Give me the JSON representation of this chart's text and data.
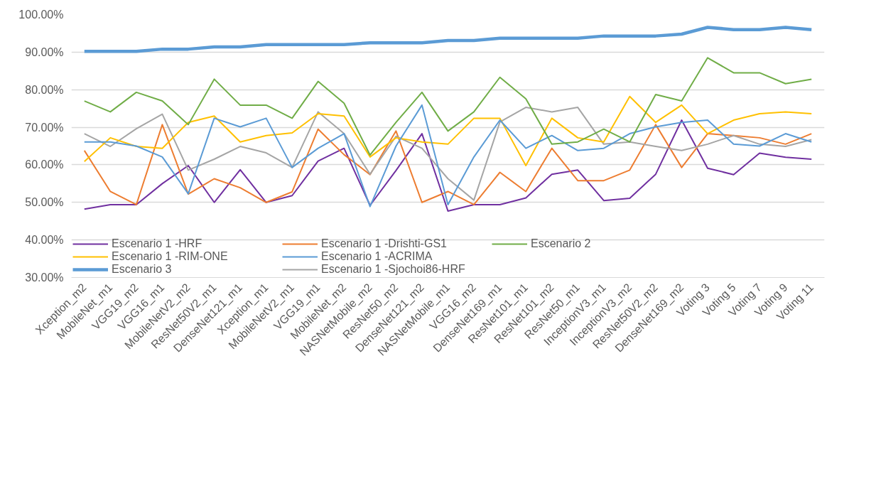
{
  "chart_data": {
    "type": "line",
    "categories": [
      "Xception_m2",
      "MobileNet_m1",
      "VGG19_m2",
      "VGG16_m1",
      "MobileNetV2_m2",
      "ResNet50V2_m1",
      "DenseNet121_m1",
      "Xception_m1",
      "MobileNetV2_m1",
      "VGG19_m1",
      "MobileNet_m2",
      "NASNetMobile_m2",
      "ResNet50_m2",
      "DenseNet121_m2",
      "NASNetMobile_m1",
      "VGG16_m2",
      "DenseNet169_m1",
      "ResNet101_m1",
      "ResNet101_m2",
      "ResNet50_m1",
      "InceptionV3_m1",
      "InceptionV3_m2",
      "ResNet50V2_m2",
      "DenseNet169_m2",
      "Voting 3",
      "Voting 5",
      "Voting 7",
      "Voting 9",
      "Voting 11"
    ],
    "series": [
      {
        "name": "Escenario 1 -HRF",
        "color": "#7030a0",
        "values": [
          48.2,
          49.4,
          49.4,
          55,
          59.8,
          50,
          58.7,
          50,
          51.8,
          61,
          64.4,
          49.2,
          58.5,
          68.3,
          47.7,
          49.4,
          49.4,
          51.2,
          57.5,
          58.6,
          50.5,
          51.1,
          57.5,
          71.9,
          59.1,
          57.4,
          63.1,
          62,
          61.5
        ]
      },
      {
        "name": "Escenario 1 -Drishti-GS1",
        "color": "#ed7d31",
        "values": [
          63.8,
          52.9,
          49.4,
          70.7,
          52.2,
          56.3,
          53.9,
          50,
          52.8,
          69.5,
          62.7,
          57.4,
          69,
          50,
          52.9,
          49.4,
          58,
          52.9,
          64.4,
          55.8,
          55.8,
          58.6,
          70.7,
          59.3,
          68.3,
          67.8,
          67.2,
          65.5,
          68.3
        ]
      },
      {
        "name": "Escenario 1 -Sjochoi86-HRF",
        "color": "#a5a5a5",
        "values": [
          68.3,
          64.9,
          69.6,
          73.5,
          58.6,
          61.5,
          64.9,
          63.2,
          59.3,
          74.1,
          68.3,
          57.5,
          67.6,
          64.4,
          56.3,
          50.6,
          71.4,
          75.3,
          74.1,
          75.3,
          65.5,
          66.1,
          64.9,
          63.8,
          65.5,
          67.8,
          65.5,
          64.9,
          66.7
        ]
      },
      {
        "name": "Escenario 1 -RIM-ONE",
        "color": "#ffc000",
        "values": [
          60.9,
          67.2,
          64.9,
          64.4,
          71.3,
          73,
          66.1,
          67.8,
          68.5,
          73.6,
          73,
          62.1,
          67.2,
          66.1,
          65.5,
          72.4,
          72.4,
          59.8,
          72.4,
          67.2,
          66.1,
          78.2,
          71.3,
          75.9,
          68.3,
          71.9,
          73.6,
          74.1,
          73.6
        ]
      },
      {
        "name": "Escenario 1 -ACRIMA",
        "color": "#5b9bd5",
        "values": [
          66.1,
          66.1,
          65,
          62.1,
          52.3,
          72.4,
          70.1,
          72.4,
          59.3,
          64.4,
          68.3,
          48.9,
          65,
          75.9,
          49.4,
          62.1,
          71.9,
          64.4,
          67.8,
          63.8,
          64.4,
          68.3,
          70.1,
          71.3,
          71.9,
          65.5,
          65,
          68.3,
          66.1
        ]
      },
      {
        "name": "Escenario 2",
        "color": "#70ad47",
        "values": [
          77,
          74.1,
          79.3,
          77,
          70.7,
          82.8,
          75.9,
          75.9,
          72.4,
          82.2,
          76.4,
          62.6,
          71.3,
          79.3,
          69,
          74.1,
          83.3,
          77.6,
          65.5,
          66.1,
          69.5,
          66.1,
          78.7,
          77,
          88.5,
          84.5,
          84.5,
          81.6,
          82.8
        ]
      },
      {
        "name": "Escenario 3",
        "color": "#5b9bd5",
        "values": [
          90.2,
          90.2,
          90.2,
          90.8,
          90.8,
          91.4,
          91.4,
          92,
          92,
          92,
          92,
          92.5,
          92.5,
          92.5,
          93.1,
          93.1,
          93.7,
          93.7,
          93.7,
          93.7,
          94.3,
          94.3,
          94.3,
          94.8,
          96.6,
          96,
          96,
          96.6,
          96
        ]
      }
    ],
    "ylim": [
      30,
      100
    ],
    "yticks": [
      {
        "value": 30,
        "label": "30.00%"
      },
      {
        "value": 40,
        "label": "40.00%"
      },
      {
        "value": 50,
        "label": "50.00%"
      },
      {
        "value": 60,
        "label": "60.00%"
      },
      {
        "value": 70,
        "label": "70.00%"
      },
      {
        "value": 80,
        "label": "80.00%"
      },
      {
        "value": 90,
        "label": "90.00%"
      },
      {
        "value": 100,
        "label": "100.00%"
      }
    ],
    "grid": "y",
    "legend": "bottom",
    "line_style": "solid",
    "marker": "none"
  }
}
